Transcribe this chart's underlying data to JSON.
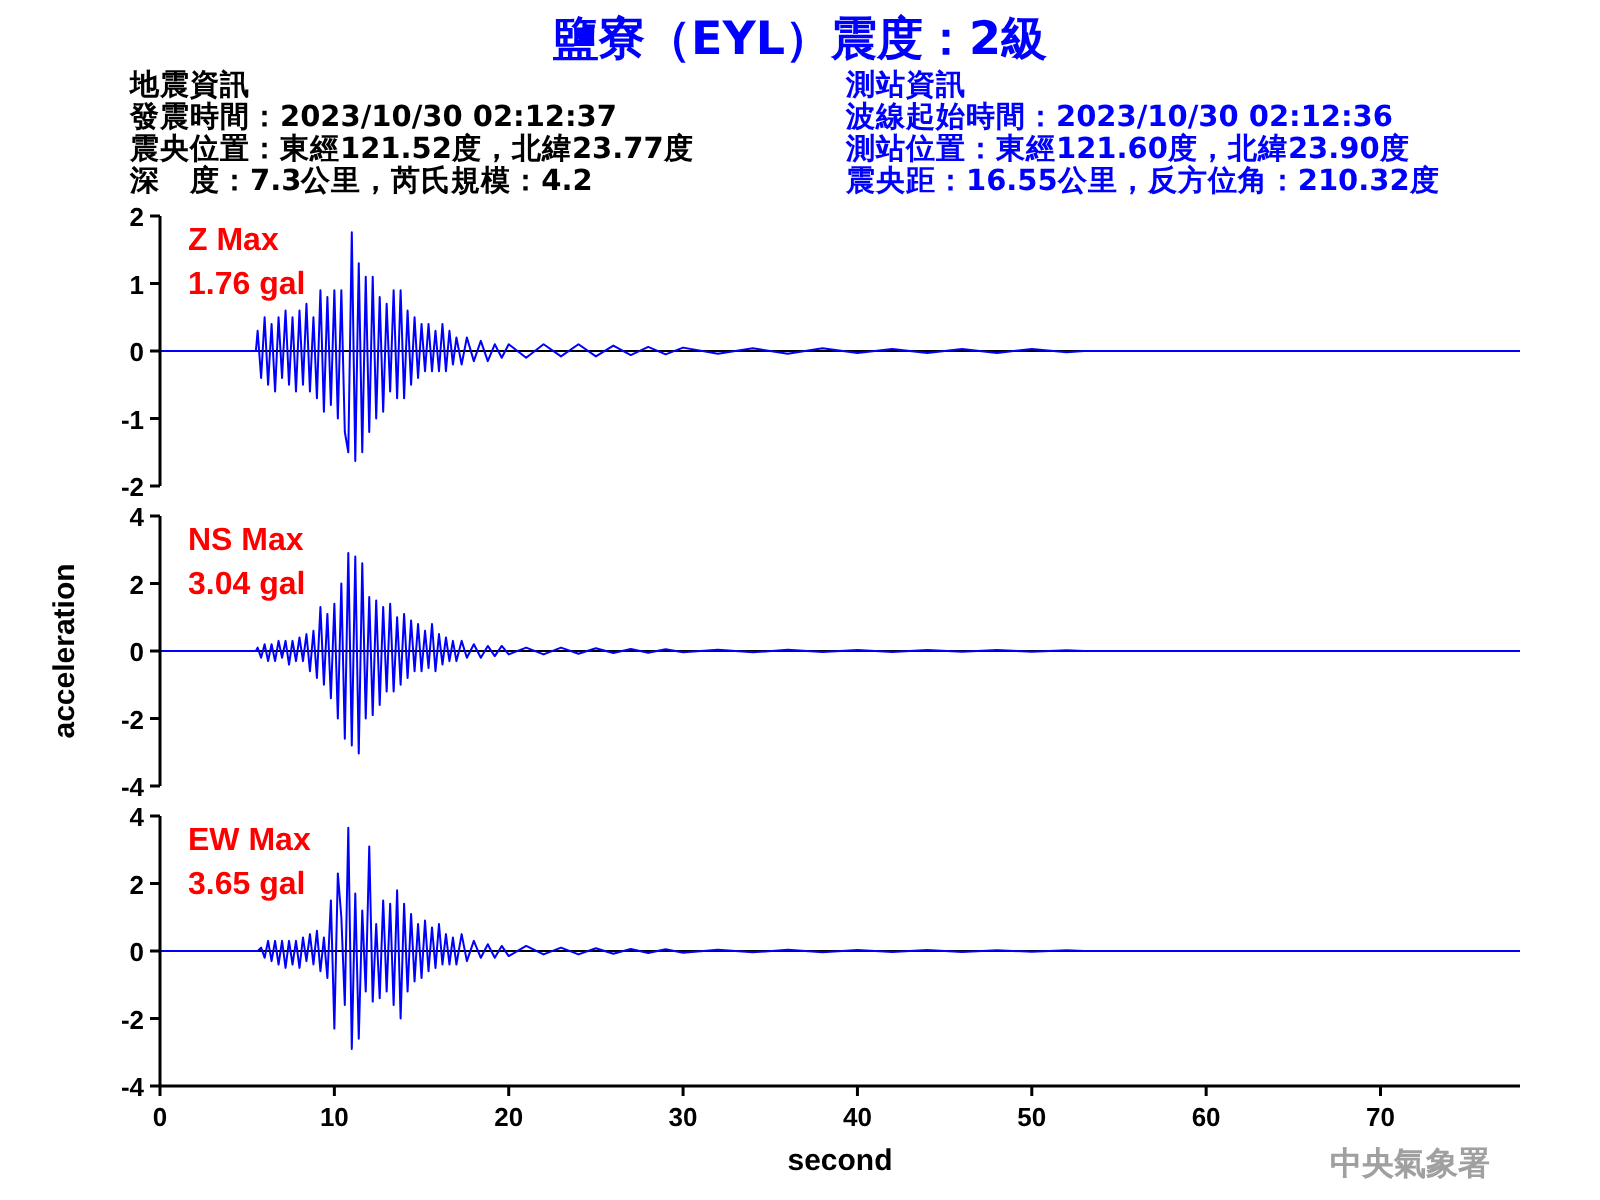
{
  "chart_data": [
    {
      "type": "line",
      "title": "鹽寮（EYL）震度：2級",
      "annotations": [
        "地震資訊",
        "發震時間：2023/10/30 02:12:37",
        "震央位置：東經121.52度，北緯23.77度",
        "深　度：7.3公里，芮氏規模：4.2",
        "測站資訊",
        "波線起始時間：2023/10/30 02:12:36",
        "測站位置：東經121.60度，北緯23.90度",
        "震央距：16.55公里，反方位角：210.32度",
        "Z Max",
        "1.76 gal"
      ],
      "x": [
        0,
        5.5,
        5.6,
        5.8,
        6.0,
        6.2,
        6.4,
        6.6,
        6.8,
        7.0,
        7.2,
        7.4,
        7.6,
        7.8,
        8.0,
        8.2,
        8.4,
        8.6,
        8.8,
        9.0,
        9.2,
        9.4,
        9.6,
        9.8,
        10.0,
        10.2,
        10.4,
        10.6,
        10.8,
        11.0,
        11.2,
        11.4,
        11.6,
        11.8,
        12.0,
        12.2,
        12.4,
        12.6,
        12.8,
        13.0,
        13.2,
        13.4,
        13.6,
        13.8,
        14.0,
        14.2,
        14.4,
        14.6,
        14.8,
        15.0,
        15.2,
        15.4,
        15.6,
        15.8,
        16.0,
        16.2,
        16.4,
        16.6,
        16.8,
        17.0,
        17.3,
        17.6,
        18.0,
        18.4,
        18.8,
        19.2,
        19.6,
        20,
        21,
        22,
        23,
        24,
        25,
        26,
        27,
        28,
        29,
        30,
        32,
        34,
        36,
        38,
        40,
        42,
        44,
        46,
        48,
        50,
        52,
        53,
        78
      ],
      "series": [
        {
          "color": "#0000ff",
          "values": [
            0,
            0,
            0.3,
            -0.4,
            0.5,
            -0.5,
            0.4,
            -0.6,
            0.5,
            -0.4,
            0.6,
            -0.5,
            0.5,
            -0.6,
            0.6,
            -0.5,
            0.7,
            -0.6,
            0.5,
            -0.7,
            0.9,
            -0.9,
            0.8,
            -0.8,
            0.9,
            -1.0,
            0.9,
            -1.2,
            -1.5,
            1.76,
            -1.63,
            1.3,
            -1.5,
            1.1,
            -1.2,
            1.1,
            -1.0,
            0.8,
            -0.9,
            0.7,
            -0.6,
            0.9,
            -0.7,
            0.9,
            -0.7,
            0.6,
            -0.5,
            0.5,
            -0.4,
            0.4,
            -0.3,
            0.4,
            -0.3,
            0.3,
            -0.3,
            0.4,
            -0.3,
            0.3,
            -0.2,
            0.2,
            -0.2,
            0.2,
            -0.15,
            0.15,
            -0.15,
            0.1,
            -0.1,
            0.1,
            -0.1,
            0.1,
            -0.08,
            0.1,
            -0.08,
            0.08,
            -0.06,
            0.06,
            -0.05,
            0.05,
            -0.04,
            0.04,
            -0.04,
            0.04,
            -0.03,
            0.03,
            -0.03,
            0.03,
            -0.03,
            0.03,
            -0.02,
            0,
            0
          ]
        }
      ],
      "ref_lines": [
        {
          "axis": "y",
          "value": 0,
          "color": "#000000"
        }
      ],
      "xlim": [
        0,
        78
      ],
      "ylim": [
        -2,
        2
      ],
      "yticks": [
        -2,
        -1,
        0,
        1,
        2
      ],
      "tick_labels": "y"
    },
    {
      "type": "line",
      "ylabel": "acceleration",
      "annotations": [
        "NS Max",
        "3.04 gal"
      ],
      "x": [
        0,
        5.5,
        5.6,
        5.8,
        6.0,
        6.2,
        6.4,
        6.6,
        6.8,
        7.0,
        7.2,
        7.4,
        7.6,
        7.8,
        8.0,
        8.2,
        8.4,
        8.6,
        8.8,
        9.0,
        9.2,
        9.4,
        9.6,
        9.8,
        10.0,
        10.2,
        10.4,
        10.6,
        10.8,
        11.0,
        11.2,
        11.4,
        11.6,
        11.8,
        12.0,
        12.2,
        12.4,
        12.6,
        12.8,
        13.0,
        13.2,
        13.4,
        13.6,
        13.8,
        14.0,
        14.2,
        14.4,
        14.6,
        14.8,
        15.0,
        15.2,
        15.4,
        15.6,
        15.8,
        16.0,
        16.2,
        16.4,
        16.6,
        16.8,
        17.0,
        17.3,
        17.6,
        18.0,
        18.4,
        18.8,
        19.2,
        19.6,
        20,
        21,
        22,
        23,
        24,
        25,
        26,
        27,
        28,
        29,
        30,
        32,
        34,
        36,
        38,
        40,
        42,
        44,
        46,
        48,
        50,
        52,
        53,
        78
      ],
      "series": [
        {
          "color": "#0000ff",
          "values": [
            0,
            0,
            0.1,
            -0.2,
            0.2,
            -0.3,
            0.2,
            -0.3,
            0.3,
            -0.2,
            0.3,
            -0.4,
            0.3,
            -0.3,
            0.4,
            -0.3,
            0.5,
            -0.6,
            0.6,
            -0.8,
            1.3,
            -1.0,
            1.1,
            -1.4,
            1.4,
            -2.0,
            2.0,
            -2.6,
            2.9,
            -2.8,
            2.8,
            -3.04,
            2.6,
            -2.0,
            1.6,
            -1.9,
            1.5,
            -1.6,
            1.3,
            -1.2,
            1.4,
            -1.2,
            1.0,
            -1.0,
            1.1,
            -0.8,
            0.9,
            -0.6,
            0.8,
            -0.6,
            0.6,
            -0.5,
            0.8,
            -0.6,
            0.5,
            -0.4,
            0.4,
            -0.3,
            0.3,
            -0.3,
            0.3,
            -0.2,
            0.2,
            -0.2,
            0.15,
            -0.15,
            0.15,
            -0.1,
            0.1,
            -0.1,
            0.1,
            -0.08,
            0.08,
            -0.06,
            0.06,
            -0.05,
            0.05,
            -0.04,
            0.04,
            -0.04,
            0.04,
            -0.03,
            0.03,
            -0.03,
            0.03,
            -0.02,
            0.03,
            -0.02,
            0.02,
            0,
            0
          ]
        }
      ],
      "ref_lines": [
        {
          "axis": "y",
          "value": 0,
          "color": "#000000"
        }
      ],
      "xlim": [
        0,
        78
      ],
      "ylim": [
        -4,
        4
      ],
      "yticks": [
        -4,
        -2,
        0,
        2,
        4
      ],
      "tick_labels": "y"
    },
    {
      "type": "line",
      "xlabel": "second",
      "annotations": [
        "EW Max",
        "3.65 gal",
        "中央氣象署"
      ],
      "x": [
        0,
        5.5,
        5.6,
        5.8,
        6.0,
        6.2,
        6.4,
        6.6,
        6.8,
        7.0,
        7.2,
        7.4,
        7.6,
        7.8,
        8.0,
        8.2,
        8.4,
        8.6,
        8.8,
        9.0,
        9.2,
        9.4,
        9.6,
        9.8,
        10.0,
        10.2,
        10.4,
        10.6,
        10.8,
        11.0,
        11.2,
        11.4,
        11.6,
        11.8,
        12.0,
        12.2,
        12.4,
        12.6,
        12.8,
        13.0,
        13.2,
        13.4,
        13.6,
        13.8,
        14.0,
        14.2,
        14.4,
        14.6,
        14.8,
        15.0,
        15.2,
        15.4,
        15.6,
        15.8,
        16.0,
        16.2,
        16.4,
        16.6,
        16.8,
        17.0,
        17.3,
        17.6,
        18.0,
        18.4,
        18.8,
        19.2,
        19.6,
        20,
        21,
        22,
        23,
        24,
        25,
        26,
        27,
        28,
        29,
        30,
        32,
        34,
        36,
        38,
        40,
        42,
        44,
        46,
        48,
        50,
        52,
        53,
        78
      ],
      "series": [
        {
          "color": "#0000ff",
          "values": [
            0,
            0,
            0,
            0.1,
            -0.2,
            0.3,
            -0.3,
            0.3,
            -0.4,
            0.3,
            -0.5,
            0.3,
            -0.4,
            0.3,
            -0.5,
            0.4,
            -0.3,
            0.5,
            -0.4,
            0.6,
            -0.6,
            0.4,
            -0.8,
            1.5,
            -2.3,
            2.3,
            1.0,
            -1.6,
            3.65,
            -2.9,
            1.7,
            -2.6,
            1.2,
            -1.2,
            3.1,
            -1.5,
            0.8,
            -1.4,
            1.5,
            -1.2,
            1.4,
            -1.6,
            1.8,
            -2.0,
            1.4,
            -1.2,
            1.1,
            -0.9,
            0.8,
            -0.8,
            0.9,
            -0.6,
            0.7,
            -0.5,
            0.8,
            -0.4,
            0.5,
            -0.4,
            0.4,
            -0.4,
            0.5,
            -0.3,
            0.3,
            -0.2,
            0.2,
            -0.2,
            0.15,
            -0.15,
            0.15,
            -0.1,
            0.1,
            -0.1,
            0.08,
            -0.08,
            0.06,
            -0.06,
            0.05,
            -0.05,
            0.04,
            -0.04,
            0.04,
            -0.04,
            0.03,
            -0.03,
            0.03,
            -0.03,
            0.02,
            -0.02,
            0.02,
            0,
            0
          ]
        }
      ],
      "ref_lines": [
        {
          "axis": "y",
          "value": 0,
          "color": "#000000"
        }
      ],
      "xlim": [
        0,
        78
      ],
      "xticks": [
        0,
        10,
        20,
        30,
        40,
        50,
        60,
        70
      ],
      "ylim": [
        -4,
        4
      ],
      "yticks": [
        -4,
        -2,
        0,
        2,
        4
      ]
    }
  ]
}
